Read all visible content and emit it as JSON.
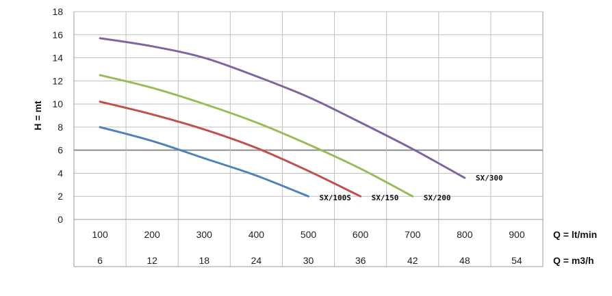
{
  "chart_data": {
    "type": "line",
    "title": "",
    "ylabel": "H = mt",
    "xlabel": "Q = lt/min",
    "xlabel_secondary": "Q = m3/h",
    "ylim": [
      0,
      18
    ],
    "yticks": [
      0,
      2,
      4,
      6,
      8,
      10,
      12,
      14,
      16,
      18
    ],
    "xticks": [
      100,
      200,
      300,
      400,
      500,
      600,
      700,
      800,
      900
    ],
    "xticks_secondary": [
      6,
      12,
      18,
      24,
      30,
      36,
      42,
      48,
      54
    ],
    "xlim": [
      50,
      950
    ],
    "series": [
      {
        "name": "SX/100S",
        "color": "#4f81bd",
        "x": [
          100,
          200,
          300,
          400,
          500
        ],
        "y": [
          8.0,
          6.8,
          5.3,
          3.8,
          2.0
        ]
      },
      {
        "name": "SX/150",
        "color": "#c0504d",
        "x": [
          100,
          200,
          300,
          400,
          500,
          600
        ],
        "y": [
          10.2,
          9.1,
          7.8,
          6.2,
          4.2,
          2.0
        ]
      },
      {
        "name": "SX/200",
        "color": "#9bbb59",
        "x": [
          100,
          200,
          300,
          400,
          500,
          600,
          700
        ],
        "y": [
          12.5,
          11.4,
          10.0,
          8.4,
          6.5,
          4.4,
          2.0
        ]
      },
      {
        "name": "SX/300",
        "color": "#8064a2",
        "x": [
          100,
          200,
          300,
          400,
          500,
          600,
          700,
          800
        ],
        "y": [
          15.7,
          15.0,
          14.0,
          12.4,
          10.6,
          8.4,
          6.1,
          3.6
        ]
      }
    ]
  }
}
